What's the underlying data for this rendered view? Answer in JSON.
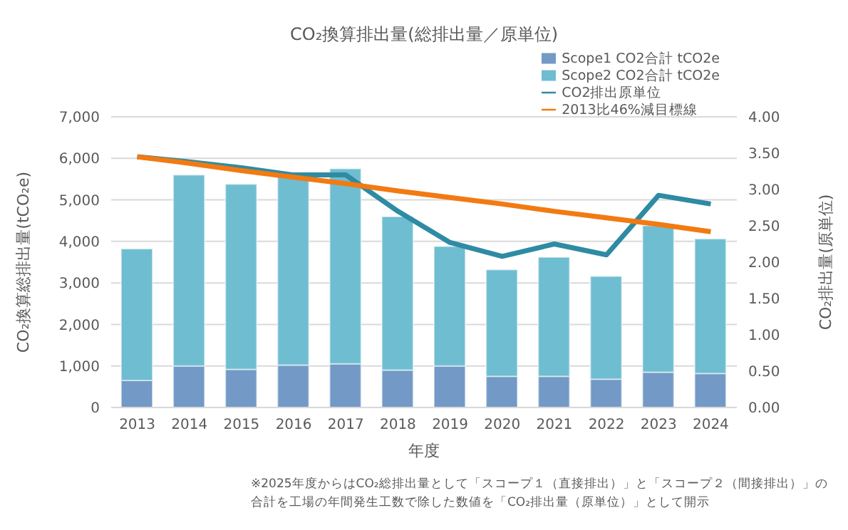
{
  "chart_data": {
    "type": "bar",
    "title": "CO₂換算排出量(総排出量／原単位)",
    "xlabel": "年度",
    "ylabel": "CO₂換算総排出量(tCO₂e)",
    "y2label": "CO₂排出量(原単位)",
    "categories": [
      "2013",
      "2014",
      "2015",
      "2016",
      "2017",
      "2018",
      "2019",
      "2020",
      "2021",
      "2022",
      "2023",
      "2024"
    ],
    "stacked": true,
    "grid": "y",
    "legend": "top right",
    "marker": "none",
    "line_style": "solid",
    "series": [
      {
        "name": "Scope1 CO2合計 tCO2e",
        "color": "#7399c6",
        "values": [
          650,
          1000,
          920,
          1020,
          1050,
          900,
          1000,
          750,
          750,
          680,
          850,
          820
        ]
      },
      {
        "name": "Scope2 CO2合計 tCO2e",
        "color": "#6fbdd1",
        "values": [
          3170,
          4600,
          4460,
          4630,
          4700,
          3700,
          2880,
          2570,
          2870,
          2480,
          3530,
          3240
        ]
      },
      {
        "name": "CO2排出原単位",
        "type": "line",
        "axis": "y2",
        "color": "#2e8ba3",
        "values": [
          3.45,
          3.38,
          3.3,
          3.2,
          3.2,
          2.7,
          2.27,
          2.08,
          2.25,
          2.1,
          2.92,
          2.8
        ]
      },
      {
        "name": "2013比46%減目標線",
        "type": "line",
        "axis": "y2",
        "color": "#f27a12",
        "values": [
          3.45,
          3.36,
          3.26,
          3.17,
          3.08,
          2.98,
          2.89,
          2.8,
          2.7,
          2.61,
          2.52,
          2.42
        ]
      }
    ],
    "ylim": [
      0,
      7000
    ],
    "yticks": [
      {
        "value": 0,
        "label": "0"
      },
      {
        "value": 1000,
        "label": "1,000"
      },
      {
        "value": 2000,
        "label": "2,000"
      },
      {
        "value": 3000,
        "label": "3,000"
      },
      {
        "value": 4000,
        "label": "4,000"
      },
      {
        "value": 5000,
        "label": "5,000"
      },
      {
        "value": 6000,
        "label": "6,000"
      },
      {
        "value": 7000,
        "label": "7,000"
      }
    ],
    "y2lim": [
      0,
      4
    ],
    "y2ticks": [
      {
        "value": 0,
        "label": "0.00"
      },
      {
        "value": 0.5,
        "label": "0.50"
      },
      {
        "value": 1,
        "label": "1.00"
      },
      {
        "value": 1.5,
        "label": "1.50"
      },
      {
        "value": 2,
        "label": "2.00"
      },
      {
        "value": 2.5,
        "label": "2.50"
      },
      {
        "value": 3,
        "label": "3.00"
      },
      {
        "value": 3.5,
        "label": "3.50"
      },
      {
        "value": 4,
        "label": "4.00"
      }
    ],
    "annotations": [
      "※2025年度からはCO₂総排出量として「スコープ１（直接排出）」と「スコープ２（間接排出）」の合計を工場の年間発生工数で除した数値を「CO₂排出量（原単位）」として開示"
    ]
  }
}
